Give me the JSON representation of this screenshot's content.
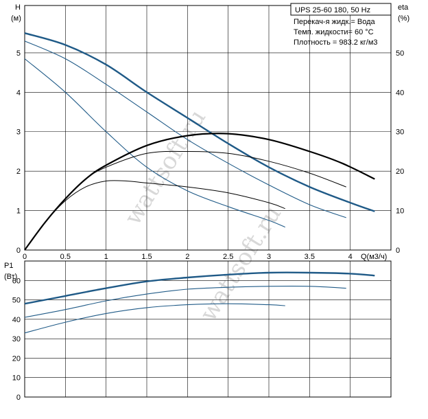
{
  "colors": {
    "pump_curve": "#1f5a87",
    "eff_curve": "#000000",
    "grid": "#000000"
  },
  "info_box": {
    "title": "UPS 25-60 180, 50 Hz",
    "lines": [
      "Перекач-я жидк.= Вода",
      "Темп. жидкости= 60 °C",
      "Плотность = 983.2 кг/м3"
    ]
  },
  "watermark": "wattsoft.ru",
  "chart_data": [
    {
      "type": "line",
      "x_axis": {
        "label": "Q(м3/ч)",
        "ticks": [
          "0",
          "0.5",
          "1",
          "1.5",
          "2",
          "2.5",
          "3",
          "3.5",
          "4"
        ],
        "range": [
          0,
          4.5
        ]
      },
      "y_axis_left": {
        "label": [
          "H",
          "(м)"
        ],
        "ticks": [
          "0",
          "1",
          "2",
          "3",
          "4",
          "5"
        ],
        "range": [
          0,
          6.2
        ]
      },
      "y_axis_right": {
        "label": [
          "eta",
          "(%)"
        ],
        "ticks": [
          "0",
          "10",
          "20",
          "30",
          "40",
          "50"
        ],
        "range": [
          0,
          62
        ]
      },
      "grid": true,
      "series": [
        {
          "axis": "H",
          "style": "pump-thick",
          "x": [
            0,
            0.5,
            1,
            1.5,
            2,
            2.5,
            3,
            3.5,
            4,
            4.3
          ],
          "y": [
            5.5,
            5.2,
            4.7,
            4.0,
            3.35,
            2.7,
            2.1,
            1.6,
            1.2,
            0.98
          ]
        },
        {
          "axis": "H",
          "style": "pump",
          "x": [
            0,
            0.5,
            1,
            1.5,
            2,
            2.5,
            3,
            3.5,
            3.95
          ],
          "y": [
            5.3,
            4.85,
            4.2,
            3.5,
            2.8,
            2.2,
            1.65,
            1.15,
            0.82
          ]
        },
        {
          "axis": "H",
          "style": "pump",
          "x": [
            0,
            0.5,
            1,
            1.5,
            2,
            2.5,
            3,
            3.2
          ],
          "y": [
            4.85,
            4.0,
            3.0,
            2.1,
            1.5,
            1.1,
            0.75,
            0.58
          ]
        },
        {
          "axis": "eta",
          "style": "eff-thick",
          "x": [
            0,
            0.25,
            0.5,
            0.75,
            1,
            1.5,
            2,
            2.5,
            3,
            3.5,
            3.9,
            4.3
          ],
          "y": [
            0,
            7,
            13,
            18,
            21.5,
            26.5,
            29,
            29.5,
            28,
            25,
            22,
            18
          ]
        },
        {
          "axis": "eta",
          "style": "eff",
          "x": [
            0,
            0.25,
            0.5,
            0.75,
            1,
            1.5,
            2,
            2.5,
            3,
            3.5,
            3.95
          ],
          "y": [
            0,
            7,
            13,
            18,
            21,
            24.5,
            25,
            24.5,
            22.5,
            19.5,
            16
          ]
        },
        {
          "axis": "eta",
          "style": "eff",
          "x": [
            0,
            0.25,
            0.5,
            0.75,
            1,
            1.25,
            1.5,
            2,
            2.5,
            3,
            3.2
          ],
          "y": [
            0,
            7,
            12.5,
            16,
            17.5,
            17.5,
            17,
            16,
            14.5,
            12,
            10.5
          ]
        }
      ]
    },
    {
      "type": "line",
      "x_axis": {
        "range": [
          0,
          4.5
        ]
      },
      "y_axis": {
        "label": [
          "P1",
          "(Вт)"
        ],
        "ticks": [
          "0",
          "10",
          "20",
          "30",
          "40",
          "50",
          "60"
        ],
        "range": [
          0,
          70
        ]
      },
      "grid": true,
      "series": [
        {
          "style": "pump-thick",
          "x": [
            0,
            0.5,
            1,
            1.5,
            2,
            2.5,
            3,
            3.5,
            4,
            4.3
          ],
          "y": [
            48,
            52,
            56,
            59.5,
            61.5,
            63,
            64,
            64,
            63.5,
            62.5
          ]
        },
        {
          "style": "pump",
          "x": [
            0,
            0.5,
            1,
            1.5,
            2,
            2.5,
            3,
            3.5,
            3.95
          ],
          "y": [
            41,
            45,
            49.5,
            53,
            55.5,
            56.5,
            57,
            57,
            56
          ]
        },
        {
          "style": "pump",
          "x": [
            0,
            0.5,
            1,
            1.5,
            2,
            2.5,
            3,
            3.2
          ],
          "y": [
            33,
            38.5,
            43,
            46,
            47.5,
            48,
            47.5,
            47
          ]
        }
      ]
    }
  ]
}
